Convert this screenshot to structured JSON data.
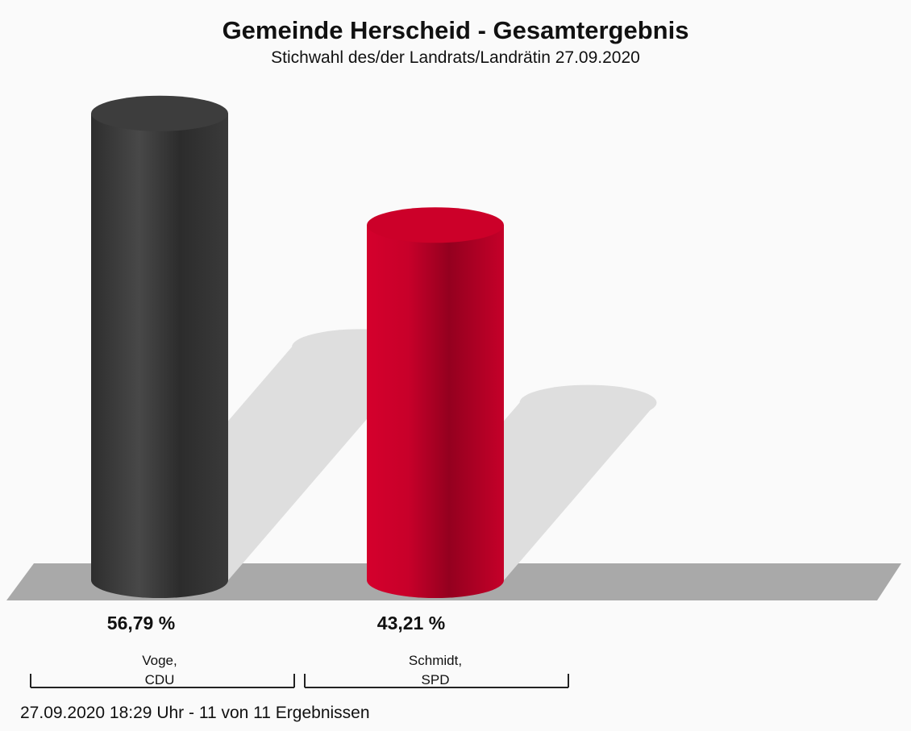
{
  "chart_data": {
    "type": "bar3d",
    "title": "Gemeinde Herscheid - Gesamtergebnis",
    "subtitle": "Stichwahl des/der Landrats/Landrätin 27.09.2020",
    "categories": [
      "Voge,\nCDU",
      "Schmidt,\nSPD"
    ],
    "series": [
      {
        "colors": [
          "#3d3d3d",
          "#cc0029"
        ],
        "values": [
          56.79,
          43.21
        ],
        "value_labels": [
          "56,79 %",
          "43,21 %"
        ]
      }
    ],
    "footer": "27.09.2020 18:29 Uhr - 11 von 11 Ergebnissen"
  }
}
